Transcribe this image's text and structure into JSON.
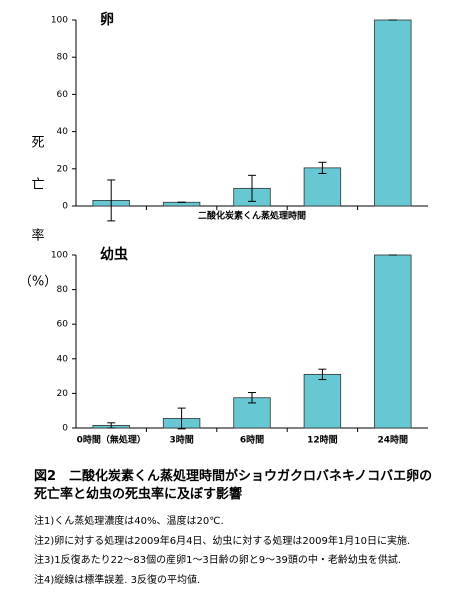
{
  "chart_data": [
    {
      "type": "bar",
      "title": "卵",
      "xlabel": "二酸化炭素くん蒸処理時間",
      "ylabel": [
        "死",
        "亡",
        "率",
        "（%）"
      ],
      "categories": [
        null,
        null,
        null,
        null,
        null
      ],
      "values": [
        3,
        2,
        9.5,
        20.5,
        100
      ],
      "errors": [
        11,
        0,
        7,
        3,
        0
      ],
      "color": "#66c8d2",
      "ylim": [
        0,
        100
      ],
      "yticks": [
        0,
        20,
        40,
        60,
        80,
        100
      ]
    },
    {
      "type": "bar",
      "title": "幼虫",
      "categories": [
        "0時間（無処理）",
        "3時間",
        "6時間",
        "12時間",
        "24時間"
      ],
      "values": [
        1.5,
        5.5,
        17.5,
        31,
        100
      ],
      "errors": [
        1.5,
        6,
        3,
        3,
        0
      ],
      "color": "#66c8d2",
      "ylim": [
        0,
        100
      ],
      "yticks": [
        0,
        20,
        40,
        60,
        80,
        100
      ]
    }
  ],
  "caption": "図2　二酸化炭素くん蒸処理時間がショウガクロバネキノコバエ卵の死亡率と幼虫の死虫率に及ぼす影響",
  "notes": [
    "注1)くん蒸処理濃度は40%、温度は20℃.",
    "注2)卵に対する処理は2009年6月4日、幼虫に対する処理は2009年1月10日に実施.",
    "注3)1反復あたり22～83個の産卵1～3日齢の卵と9～39頭の中・老齢幼虫を供試.",
    "注4)縦線は標準誤差. 3反復の平均値."
  ]
}
